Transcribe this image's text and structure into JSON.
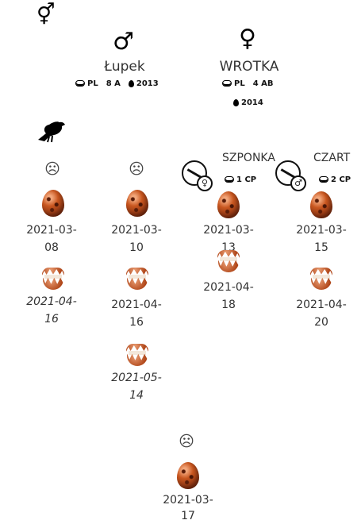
{
  "header": {
    "pair_icon": "⚥",
    "bird_icon": "crow-icon"
  },
  "parents": {
    "male": {
      "symbol": "♂",
      "name": "Łupek",
      "ring_country": "PL",
      "ring_code": "8 A",
      "year": "2013"
    },
    "female": {
      "symbol": "♀",
      "name": "WROTKA",
      "ring_country": "PL",
      "ring_code": "4 AB",
      "year": "2014"
    }
  },
  "sad_face": "☹",
  "columns": [
    {
      "laid": "2021-03-08",
      "outcome_date": "2021-04-16",
      "outcome_italic": true
    },
    {
      "laid": "2021-03-10",
      "outcome_date": "2021-04-16",
      "outcome_italic": false,
      "extra_date": "2021-05-14",
      "extra_italic": true
    },
    {
      "child_name": "SZPONKA",
      "child_sex": "♀",
      "ring_code": "1 CP",
      "laid": "2021-03-13",
      "outcome_date": "2021-04-18"
    },
    {
      "child_name": "CZART",
      "child_sex": "♂",
      "ring_code": "2 CP",
      "laid": "2021-03-15",
      "outcome_date": "2021-04-20"
    }
  ],
  "bottom": {
    "laid": "2021-03-17"
  }
}
